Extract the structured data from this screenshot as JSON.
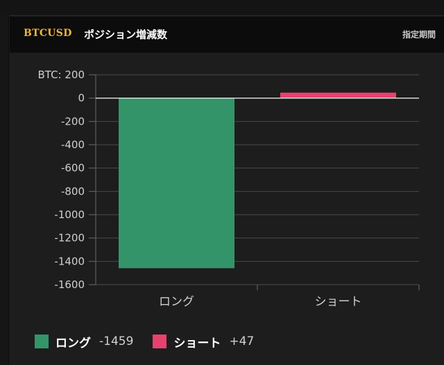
{
  "panel": {
    "symbol": "BTCUSD",
    "title": "ポジション増減数",
    "period_link": "指定期間"
  },
  "chart_data": {
    "type": "bar",
    "categories": [
      "ロング",
      "ショート"
    ],
    "values": [
      -1459,
      47
    ],
    "colors": [
      "#33946a",
      "#e8416e"
    ],
    "ylim": [
      -1600,
      200
    ],
    "yticks": [
      200,
      0,
      -200,
      -400,
      -600,
      -800,
      -1000,
      -1200,
      -1400,
      -1600
    ],
    "ytick_labels": [
      "BTC: 200",
      "0",
      "-200",
      "-400",
      "-600",
      "-800",
      "-1000",
      "-1200",
      "-1400",
      "-1600"
    ],
    "grid": true
  },
  "legend": [
    {
      "label": "ロング",
      "value": "-1459",
      "color": "#33946a"
    },
    {
      "label": "ショート",
      "value": "+47",
      "color": "#e8416e"
    }
  ]
}
